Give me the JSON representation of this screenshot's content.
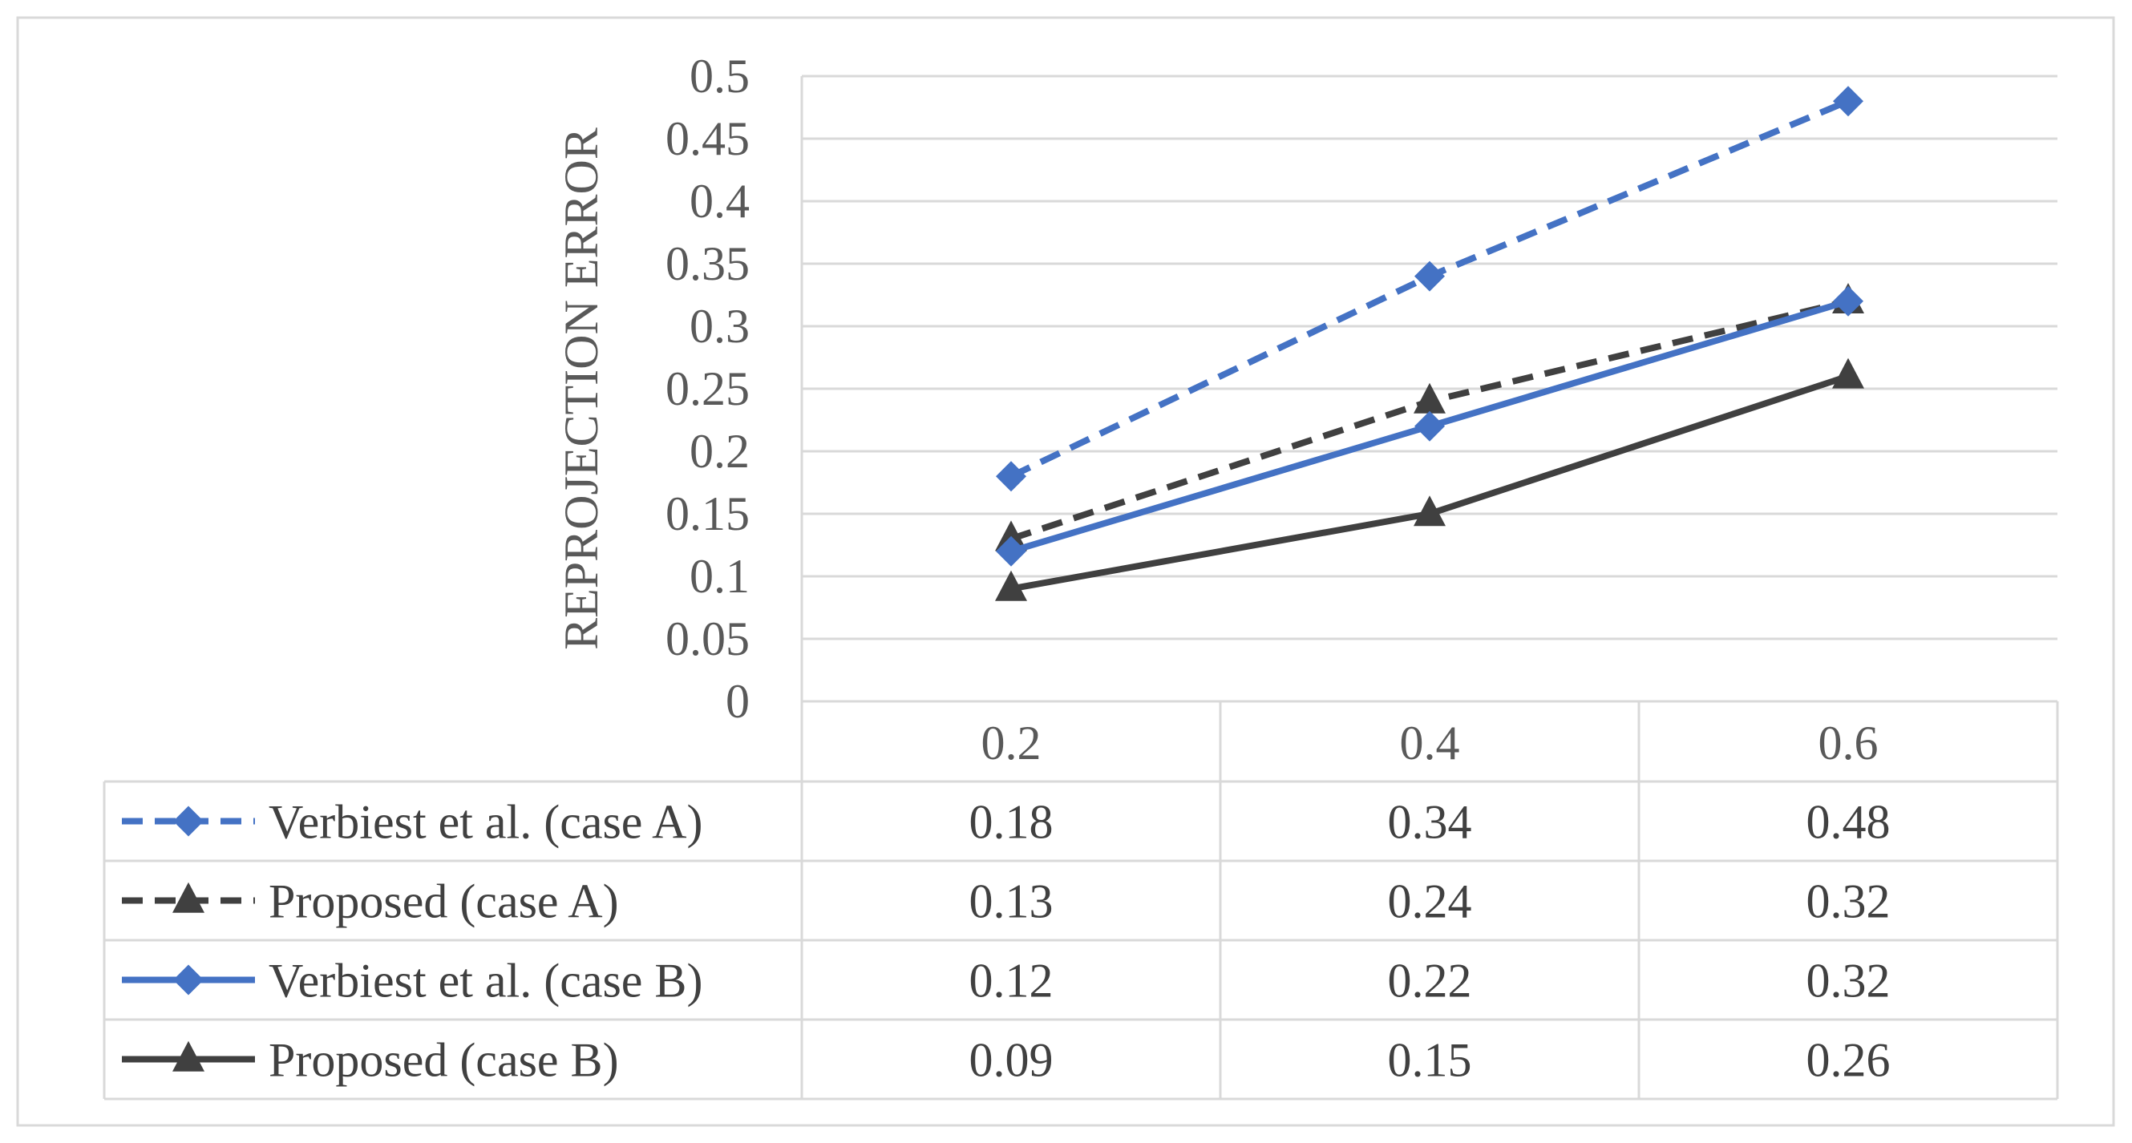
{
  "chart_data": {
    "type": "line",
    "title": "",
    "xlabel": "",
    "ylabel": "REPROJECTION ERROR",
    "ylim": [
      0,
      0.5
    ],
    "ytick_step": 0.05,
    "yticks": [
      "0",
      "0.05",
      "0.1",
      "0.15",
      "0.2",
      "0.25",
      "0.3",
      "0.35",
      "0.4",
      "0.45",
      "0.5"
    ],
    "categories": [
      "0.2",
      "0.4",
      "0.6"
    ],
    "grid": true,
    "legend": "data-table-below",
    "series": [
      {
        "name": "Verbiest et al. (case A)",
        "values": [
          0.18,
          0.34,
          0.48
        ],
        "labels": [
          "0.18",
          "0.34",
          "0.48"
        ],
        "color": "#4472c4",
        "dashed": true,
        "marker": "diamond"
      },
      {
        "name": "Proposed (case A)",
        "values": [
          0.13,
          0.24,
          0.32
        ],
        "labels": [
          "0.13",
          "0.24",
          "0.32"
        ],
        "color": "#404040",
        "dashed": true,
        "marker": "triangle"
      },
      {
        "name": "Verbiest et al. (case B)",
        "values": [
          0.12,
          0.22,
          0.32
        ],
        "labels": [
          "0.12",
          "0.22",
          "0.32"
        ],
        "color": "#4472c4",
        "dashed": false,
        "marker": "diamond"
      },
      {
        "name": "Proposed (case B)",
        "values": [
          0.09,
          0.15,
          0.26
        ],
        "labels": [
          "0.09",
          "0.15",
          "0.26"
        ],
        "color": "#404040",
        "dashed": false,
        "marker": "triangle"
      }
    ]
  }
}
